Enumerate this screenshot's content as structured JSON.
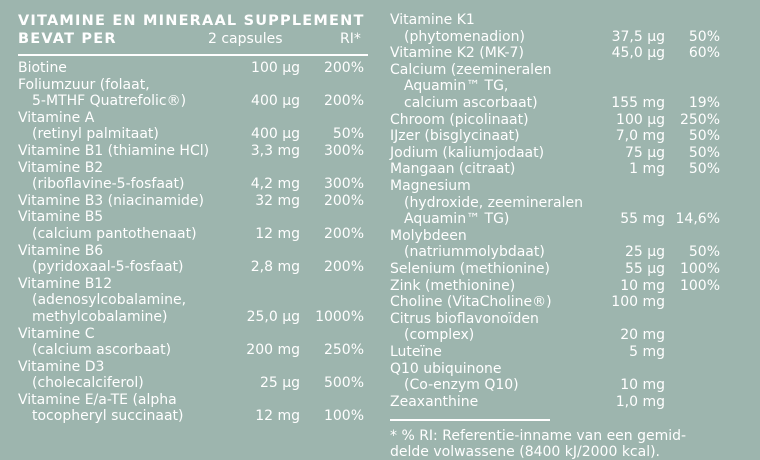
{
  "header": {
    "title": "VITAMINE EN MINERAAL SUPPLEMENT",
    "subtitle": "BEVAT PER",
    "col_amount": "2 capsules",
    "col_ri": "RI*"
  },
  "left_rows": [
    {
      "lines": [
        "Biotine"
      ],
      "amount": "100 µg",
      "ri": "200%"
    },
    {
      "lines": [
        "Foliumzuur (folaat,",
        "5-MTHF Quatrefolic®)"
      ],
      "amount": "400 µg",
      "ri": "200%"
    },
    {
      "lines": [
        "Vitamine A",
        "(retinyl palmitaat)"
      ],
      "amount": "400 µg",
      "ri": "50%"
    },
    {
      "lines": [
        "Vitamine B1 (thiamine HCl)"
      ],
      "amount": "3,3 mg",
      "ri": "300%"
    },
    {
      "lines": [
        "Vitamine B2",
        "(riboflavine-5-fosfaat)"
      ],
      "amount": "4,2 mg",
      "ri": "300%"
    },
    {
      "lines": [
        "Vitamine B3 (niacinamide)"
      ],
      "amount": "32 mg",
      "ri": "200%"
    },
    {
      "lines": [
        "Vitamine B5",
        "(calcium pantothenaat)"
      ],
      "amount": "12 mg",
      "ri": "200%"
    },
    {
      "lines": [
        "Vitamine B6",
        "(pyridoxaal-5-fosfaat)"
      ],
      "amount": "2,8 mg",
      "ri": "200%"
    },
    {
      "lines": [
        "Vitamine B12",
        "(adenosylcobalamine,",
        "methylcobalamine)"
      ],
      "amount": "25,0 µg",
      "ri": "1000%"
    },
    {
      "lines": [
        "Vitamine C",
        "(calcium ascorbaat)"
      ],
      "amount": "200 mg",
      "ri": "250%"
    },
    {
      "lines": [
        "Vitamine D3",
        "(cholecalciferol)"
      ],
      "amount": "25 µg",
      "ri": "500%"
    },
    {
      "lines": [
        "Vitamine E/a-TE (alpha",
        "tocopheryl succinaat)"
      ],
      "amount": "12 mg",
      "ri": "100%"
    }
  ],
  "right_rows": [
    {
      "lines": [
        "Vitamine K1",
        "(phytomenadion)"
      ],
      "amount": "37,5 µg",
      "ri": "50%"
    },
    {
      "lines": [
        "Vitamine K2 (MK-7)"
      ],
      "amount": "45,0 µg",
      "ri": "60%"
    },
    {
      "lines": [
        "Calcium (zeemineralen",
        "Aquamin™ TG,",
        "calcium ascorbaat)"
      ],
      "amount": "155 mg",
      "ri": "19%"
    },
    {
      "lines": [
        "Chroom (picolinaat)"
      ],
      "amount": "100 µg",
      "ri": "250%"
    },
    {
      "lines": [
        "IJzer (bisglycinaat)"
      ],
      "amount": "7,0 mg",
      "ri": "50%"
    },
    {
      "lines": [
        "Jodium (kaliumjodaat)"
      ],
      "amount": "75 µg",
      "ri": "50%"
    },
    {
      "lines": [
        "Mangaan (citraat)"
      ],
      "amount": "1 mg",
      "ri": "50%"
    },
    {
      "lines": [
        "Magnesium",
        "(hydroxide, zeemineralen",
        "Aquamin™ TG)"
      ],
      "amount": "55 mg",
      "ri": "14,6%"
    },
    {
      "lines": [
        "Molybdeen",
        "(natriummolybdaat)"
      ],
      "amount": "25 µg",
      "ri": "50%"
    },
    {
      "lines": [
        "Selenium (methionine)"
      ],
      "amount": "55 µg",
      "ri": "100%"
    },
    {
      "lines": [
        "Zink (methionine)"
      ],
      "amount": "10 mg",
      "ri": "100%"
    },
    {
      "lines": [
        "Choline (VitaCholine®)"
      ],
      "amount": "100 mg",
      "ri": ""
    },
    {
      "lines": [
        "Citrus bioflavonoïden",
        "(complex)"
      ],
      "amount": "20 mg",
      "ri": ""
    },
    {
      "lines": [
        "Luteïne"
      ],
      "amount": "5 mg",
      "ri": ""
    },
    {
      "lines": [
        "Q10 ubiquinone",
        "(Co-enzym Q10)"
      ],
      "amount": "10 mg",
      "ri": ""
    },
    {
      "lines": [
        "Zeaxanthine"
      ],
      "amount": "1,0 mg",
      "ri": ""
    }
  ],
  "footnote": [
    "* % RI: Referentie-inname van een gemid-",
    "delde volwassene (8400 kJ/2000 kcal)."
  ]
}
